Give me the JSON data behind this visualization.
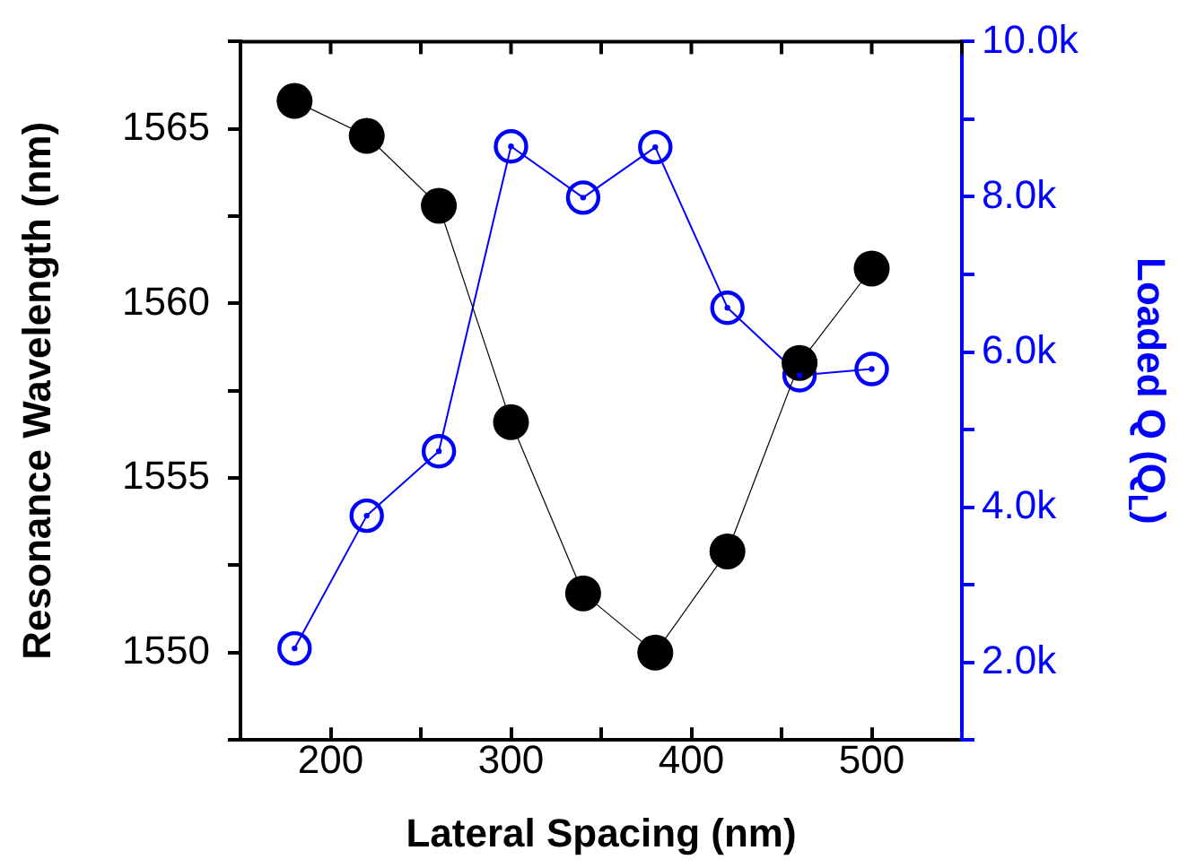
{
  "chart_data": {
    "type": "line",
    "xlabel": "Lateral Spacing (nm)",
    "ylabel": "Resonance Wavelength (nm)",
    "y2label": "Loaded Q (Q$_{L}$)",
    "x": [
      180,
      220,
      260,
      300,
      340,
      380,
      420,
      460,
      500
    ],
    "series": [
      {
        "color": "#000000",
        "values": [
          1565.8,
          1564.8,
          1562.8,
          1556.6,
          1551.7,
          1550.0,
          1552.9,
          1558.3,
          1561.0
        ]
      },
      {
        "color": "#0000ff",
        "axis": "y2",
        "values": [
          2180,
          3890,
          4720,
          8650,
          7990,
          8640,
          6570,
          5700,
          5780
        ]
      }
    ],
    "xlim": [
      150,
      550
    ],
    "xticks": [
      {
        "value": 150,
        "label": null
      },
      200,
      {
        "value": 250,
        "label": null
      },
      300,
      {
        "value": 350,
        "label": null
      },
      400,
      {
        "value": 450,
        "label": null
      },
      500,
      {
        "value": 550,
        "label": null
      }
    ],
    "ylim": [
      1547.5,
      1567.5
    ],
    "yticks": [
      {
        "value": 1547.5,
        "label": null
      },
      1550,
      {
        "value": 1552.5,
        "label": null
      },
      1555,
      {
        "value": 1557.5,
        "label": null
      },
      1560,
      {
        "value": 1562.5,
        "label": null
      },
      1565,
      {
        "value": 1567.5,
        "label": null
      }
    ],
    "y2lim": [
      1000,
      10000
    ],
    "y2ticks": [
      {
        "value": 1000,
        "label": null
      },
      {
        "value": 2000,
        "label": "2.0k"
      },
      {
        "value": 3000,
        "label": null
      },
      {
        "value": 4000,
        "label": "4.0k"
      },
      {
        "value": 5000,
        "label": null
      },
      {
        "value": 6000,
        "label": "6.0k"
      },
      {
        "value": 7000,
        "label": null
      },
      {
        "value": 8000,
        "label": "8.0k"
      },
      {
        "value": 9000,
        "label": null
      },
      {
        "value": 10000,
        "label": "10.0k"
      }
    ],
    "grid": false,
    "legend": false,
    "marker": "circle",
    "line_style": "solid"
  }
}
